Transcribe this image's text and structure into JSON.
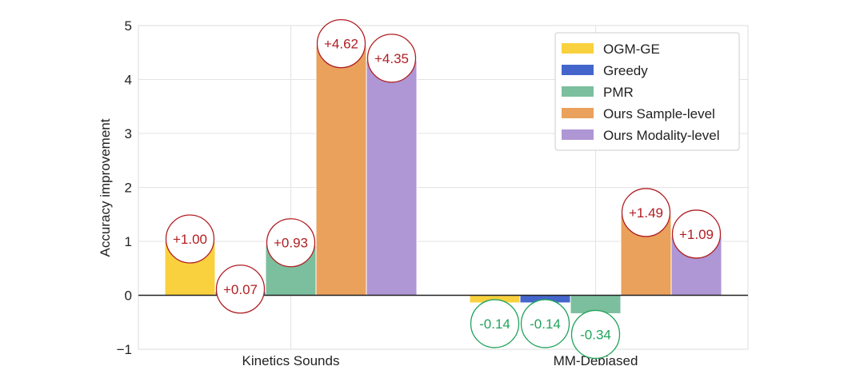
{
  "chart_data": {
    "type": "bar",
    "categories": [
      "Kinetics Sounds",
      "MM-Debiased"
    ],
    "series": [
      {
        "name": "OGM-GE",
        "color": "#F9D13E",
        "values": [
          1.0,
          -0.14
        ]
      },
      {
        "name": "Greedy",
        "color": "#4466CC",
        "values": [
          0.07,
          -0.14
        ]
      },
      {
        "name": "PMR",
        "color": "#7BBF9E",
        "values": [
          0.93,
          -0.34
        ]
      },
      {
        "name": "Ours Sample-level",
        "color": "#E9A15C",
        "values": [
          4.62,
          1.49
        ]
      },
      {
        "name": "Ours Modality-level",
        "color": "#AF96D4",
        "values": [
          4.35,
          1.09
        ]
      }
    ],
    "data_labels": [
      [
        "+1.00",
        "+0.07",
        "+0.93",
        "+4.62",
        "+4.35"
      ],
      [
        "-0.14",
        "-0.14",
        "-0.34",
        "+1.49",
        "+1.09"
      ]
    ],
    "positive_label_color": "#B01E23",
    "negative_label_color": "#21A35B",
    "ylabel": "Accuracy improvement",
    "xlabel": "",
    "ylim": [
      -1,
      5
    ],
    "yticks": [
      "−1",
      "0",
      "1",
      "2",
      "3",
      "4",
      "5"
    ],
    "grid": true,
    "legend_position": "top-right"
  }
}
